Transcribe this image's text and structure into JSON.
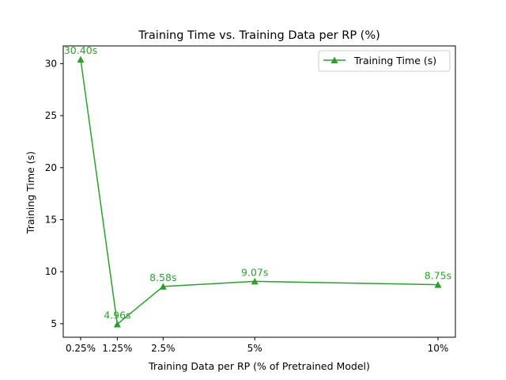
{
  "chart_data": {
    "type": "line",
    "title": "Training Time vs. Training Data per RP (%)",
    "xlabel": "Training Data per RP (% of Pretrained Model)",
    "ylabel": "Training Time (s)",
    "x": [
      0.25,
      1.25,
      2.5,
      5,
      10
    ],
    "categories": [
      "0.25%",
      "1.25%",
      "2.5%",
      "5%",
      "10%"
    ],
    "xlim": [
      -0.225,
      10.475
    ],
    "ylim": [
      3.7,
      31.7
    ],
    "yticks": [
      5,
      10,
      15,
      20,
      25,
      30
    ],
    "grid": false,
    "legend_position": "top-right",
    "series": [
      {
        "name": "Training Time (s)",
        "values": [
          30.4,
          4.96,
          8.58,
          9.07,
          8.75
        ],
        "labels": [
          "30.40s",
          "4.96s",
          "8.58s",
          "9.07s",
          "8.75s"
        ],
        "color": "#2ca02c",
        "marker": "triangle-up"
      }
    ]
  }
}
